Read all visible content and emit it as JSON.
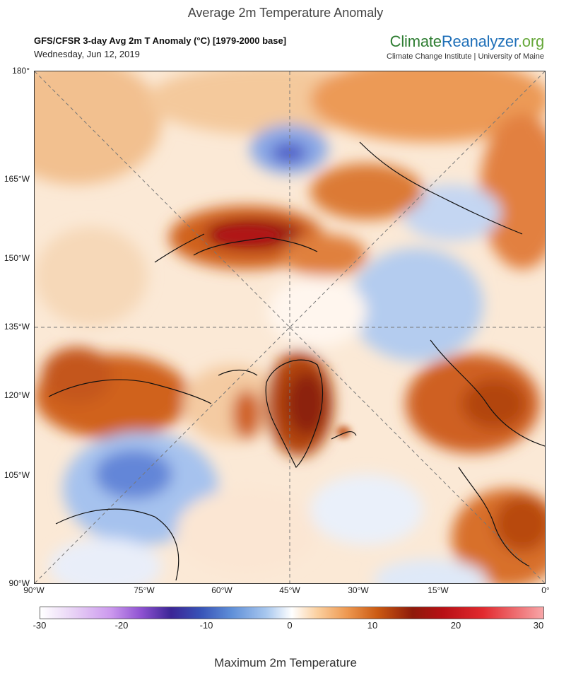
{
  "page_title": "Average 2m Temperature Anomaly",
  "header": {
    "title": "GFS/CFSR 3-day Avg 2m T Anomaly (°C) [1979-2000 base]",
    "date": "Wednesday, Jun 12, 2019"
  },
  "brand": {
    "part1": "Climate",
    "part2": "Reanalyzer",
    "part3": ".org",
    "subtitle": "Climate Change Institute | University of Maine"
  },
  "map": {
    "left_labels": [
      "180°",
      "165°W",
      "150°W",
      "135°W",
      "120°W",
      "105°W",
      "90°W"
    ],
    "bottom_labels": [
      "90°W",
      "75°W",
      "60°W",
      "45°W",
      "30°W",
      "15°W",
      "0°"
    ]
  },
  "colorbar": {
    "ticks": [
      "-30",
      "-20",
      "-10",
      "0",
      "10",
      "20",
      "30"
    ],
    "colors": {
      "cold_extreme": "#3b2596",
      "cold": "#5f8fd8",
      "neutral": "#ffffff",
      "warm": "#ee9850",
      "hot": "#8e1a0a",
      "hot_extreme": "#e22a2f"
    }
  },
  "footer": "Maximum 2m Temperature"
}
